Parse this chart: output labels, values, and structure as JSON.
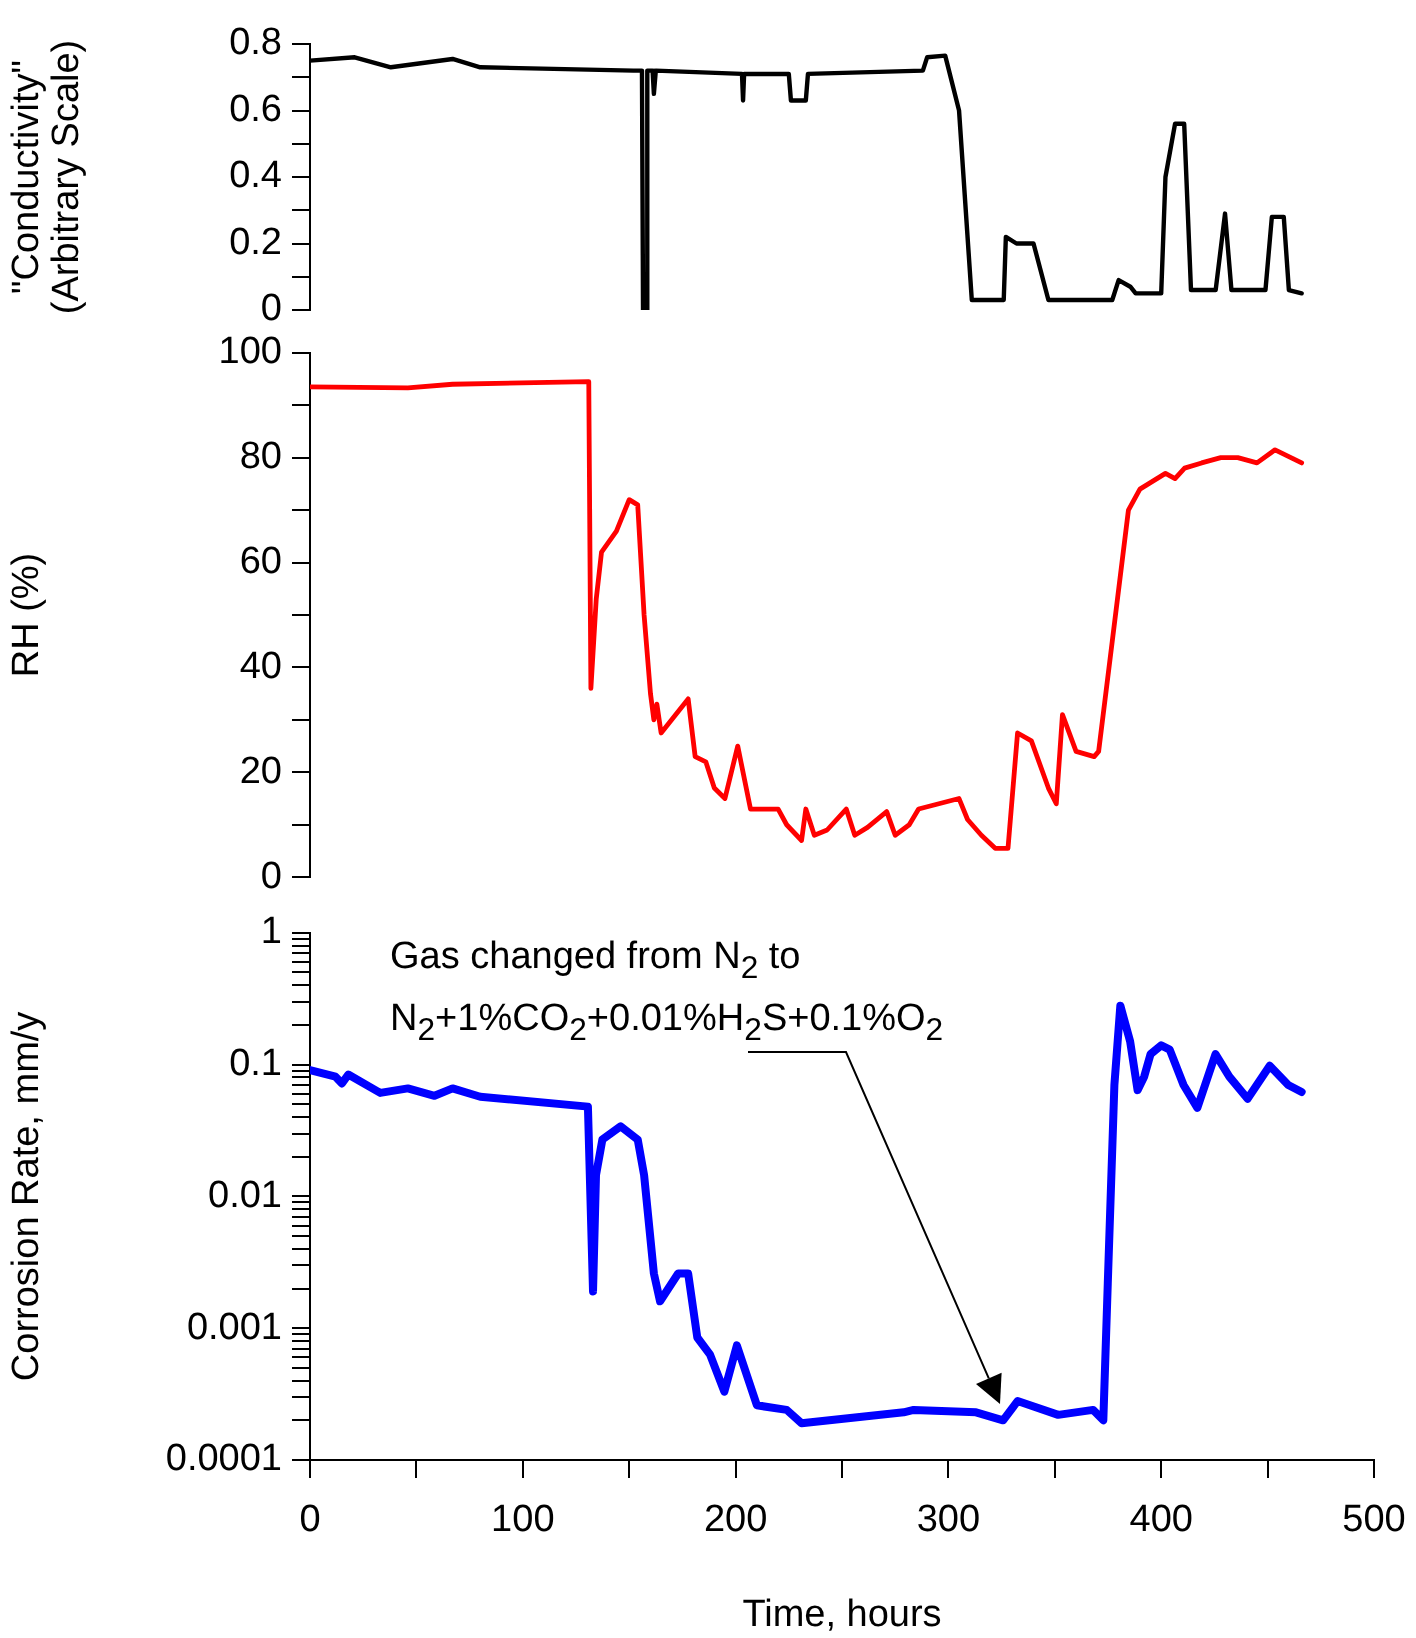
{
  "chart_data": [
    {
      "type": "line",
      "ylabel": "\"Conductivity\"\n(Arbitrary Scale)",
      "xlim": [
        0,
        500
      ],
      "ylim": [
        0,
        0.8
      ],
      "tick_labels": "y",
      "legend": false,
      "grid": false,
      "marker": "none",
      "line_style": "solid",
      "yticks": [
        0,
        {
          "value": 0.1,
          "label": null
        },
        0.2,
        {
          "value": 0.3,
          "label": null
        },
        0.4,
        {
          "value": 0.5,
          "label": null
        },
        0.6,
        {
          "value": 0.7,
          "label": null
        },
        0.8
      ],
      "x": [
        0,
        21,
        38,
        67,
        80,
        152,
        156,
        156.5,
        158,
        158.5,
        161,
        161.6,
        162.5,
        203,
        203.5,
        204,
        225,
        226,
        233,
        234,
        288,
        290,
        298.5,
        305,
        311,
        326,
        327,
        332,
        340,
        347,
        377,
        380,
        385.5,
        388,
        400,
        402,
        406.5,
        410.8,
        414,
        425.6,
        430,
        433,
        449,
        452,
        457.6,
        460,
        466
      ],
      "series": [
        {
          "color": "#000000",
          "values": [
            0.75,
            0.76,
            0.73,
            0.755,
            0.73,
            0.72,
            0.72,
            0,
            0,
            0.72,
            0.72,
            0.65,
            0.72,
            0.71,
            0.63,
            0.71,
            0.71,
            0.63,
            0.63,
            0.71,
            0.72,
            0.76,
            0.765,
            0.6,
            0.03,
            0.03,
            0.22,
            0.2,
            0.2,
            0.03,
            0.03,
            0.09,
            0.07,
            0.05,
            0.05,
            0.4,
            0.56,
            0.56,
            0.06,
            0.06,
            0.29,
            0.06,
            0.06,
            0.28,
            0.28,
            0.06,
            0.05
          ]
        }
      ]
    },
    {
      "type": "line",
      "ylabel": "RH (%)",
      "xlim": [
        0,
        500
      ],
      "ylim": [
        0,
        100
      ],
      "tick_labels": "y",
      "legend": false,
      "grid": false,
      "marker": "none",
      "line_style": "solid",
      "yticks": [
        0,
        {
          "value": 10,
          "label": null
        },
        20,
        {
          "value": 30,
          "label": null
        },
        40,
        {
          "value": 50,
          "label": null
        },
        60,
        {
          "value": 70,
          "label": null
        },
        80,
        {
          "value": 90,
          "label": null
        },
        100
      ],
      "x": [
        0,
        46,
        67,
        131,
        132,
        134.5,
        137,
        144,
        150,
        154,
        157,
        160,
        161.6,
        163,
        165,
        177.7,
        181,
        186,
        190,
        195,
        201,
        207,
        220,
        224,
        231,
        233,
        237,
        243,
        252,
        256,
        262,
        271,
        275,
        281.6,
        286,
        305,
        309,
        315.5,
        322,
        328,
        332.5,
        339,
        347,
        350.7,
        353.6,
        360,
        368.5,
        370.6,
        377,
        384.6,
        390,
        402,
        406.5,
        411,
        419,
        428,
        436,
        445,
        453.5,
        466
      ],
      "series": [
        {
          "color": "#ff0000",
          "values": [
            93.5,
            93.3,
            94,
            94.5,
            36,
            53,
            62,
            66,
            72,
            71,
            50,
            35,
            30,
            33,
            27.5,
            34,
            23,
            22,
            17,
            15,
            25,
            13,
            13,
            10,
            7,
            13,
            8,
            9,
            13,
            8,
            9.5,
            12.5,
            8,
            10,
            13,
            15,
            11,
            8,
            5.5,
            5.5,
            27.5,
            26,
            17,
            14,
            31,
            24,
            23,
            24,
            45,
            70,
            74,
            77,
            76,
            78,
            79,
            80,
            80,
            79,
            81.5,
            79
          ]
        }
      ]
    },
    {
      "type": "line",
      "xlabel": "Time, hours",
      "ylabel": "Corrosion Rate, mm/y",
      "log": true,
      "xlim": [
        0,
        500
      ],
      "ylim": [
        0.0001,
        1
      ],
      "legend": false,
      "grid": false,
      "marker": "none",
      "line_style": "solid",
      "xticks": [
        0,
        {
          "value": 50,
          "label": null
        },
        100,
        {
          "value": 150,
          "label": null
        },
        200,
        {
          "value": 250,
          "label": null
        },
        300,
        {
          "value": 350,
          "label": null
        },
        400,
        {
          "value": 450,
          "label": null
        },
        500
      ],
      "yticks": [
        0.0001,
        {
          "value": 0.0002,
          "label": null
        },
        {
          "value": 0.0003,
          "label": null
        },
        {
          "value": 0.0004,
          "label": null
        },
        {
          "value": 0.0005,
          "label": null
        },
        {
          "value": 0.0006,
          "label": null
        },
        {
          "value": 0.0007,
          "label": null
        },
        {
          "value": 0.0008,
          "label": null
        },
        {
          "value": 0.0009,
          "label": null
        },
        0.001,
        {
          "value": 0.002,
          "label": null
        },
        {
          "value": 0.003,
          "label": null
        },
        {
          "value": 0.004,
          "label": null
        },
        {
          "value": 0.005,
          "label": null
        },
        {
          "value": 0.006,
          "label": null
        },
        {
          "value": 0.007,
          "label": null
        },
        {
          "value": 0.008,
          "label": null
        },
        {
          "value": 0.009,
          "label": null
        },
        0.01,
        {
          "value": 0.02,
          "label": null
        },
        {
          "value": 0.03,
          "label": null
        },
        {
          "value": 0.04,
          "label": null
        },
        {
          "value": 0.05,
          "label": null
        },
        {
          "value": 0.06,
          "label": null
        },
        {
          "value": 0.07,
          "label": null
        },
        {
          "value": 0.08,
          "label": null
        },
        {
          "value": 0.09,
          "label": null
        },
        0.1,
        {
          "value": 0.2,
          "label": null
        },
        {
          "value": 0.3,
          "label": null
        },
        {
          "value": 0.4,
          "label": null
        },
        {
          "value": 0.5,
          "label": null
        },
        {
          "value": 0.6,
          "label": null
        },
        {
          "value": 0.7,
          "label": null
        },
        {
          "value": 0.8,
          "label": null
        },
        {
          "value": 0.9,
          "label": null
        },
        1
      ],
      "annotations": [
        "Gas changed from N$_{2}$ to",
        "N$_{2}$+1%CO$_{2}$+0.01%H$_{2}$S+0.1%O$_{2}$"
      ],
      "x": [
        0,
        12,
        15,
        18,
        33,
        46,
        58.5,
        67,
        80,
        130.6,
        133,
        134.4,
        137.4,
        146,
        154,
        157,
        161.6,
        164.5,
        173,
        177.7,
        182,
        188,
        194.7,
        200.6,
        210,
        224,
        231,
        279,
        283.7,
        313,
        325.7,
        332.5,
        351.6,
        368,
        372.8,
        374.9,
        378,
        380.8,
        385.4,
        388.9,
        392,
        395,
        400,
        404,
        410.5,
        417,
        425.5,
        432,
        440.6,
        451,
        459.7,
        466
      ],
      "series": [
        {
          "color": "#0000ff",
          "values": [
            0.091,
            0.081,
            0.072,
            0.084,
            0.061,
            0.066,
            0.058,
            0.066,
            0.057,
            0.048,
            0.0019,
            0.0145,
            0.027,
            0.034,
            0.027,
            0.0145,
            0.0026,
            0.0016,
            0.0026,
            0.0026,
            0.00085,
            0.00063,
            0.00033,
            0.00074,
            0.00026,
            0.00024,
            0.00019,
            0.00023,
            0.00024,
            0.00023,
            0.0002,
            0.00028,
            0.00022,
            0.00024,
            0.0002,
            0.0022,
            0.07,
            0.28,
            0.15,
            0.064,
            0.081,
            0.12,
            0.14,
            0.13,
            0.07,
            0.047,
            0.12,
            0.081,
            0.055,
            0.098,
            0.07,
            0.062
          ]
        }
      ]
    }
  ]
}
